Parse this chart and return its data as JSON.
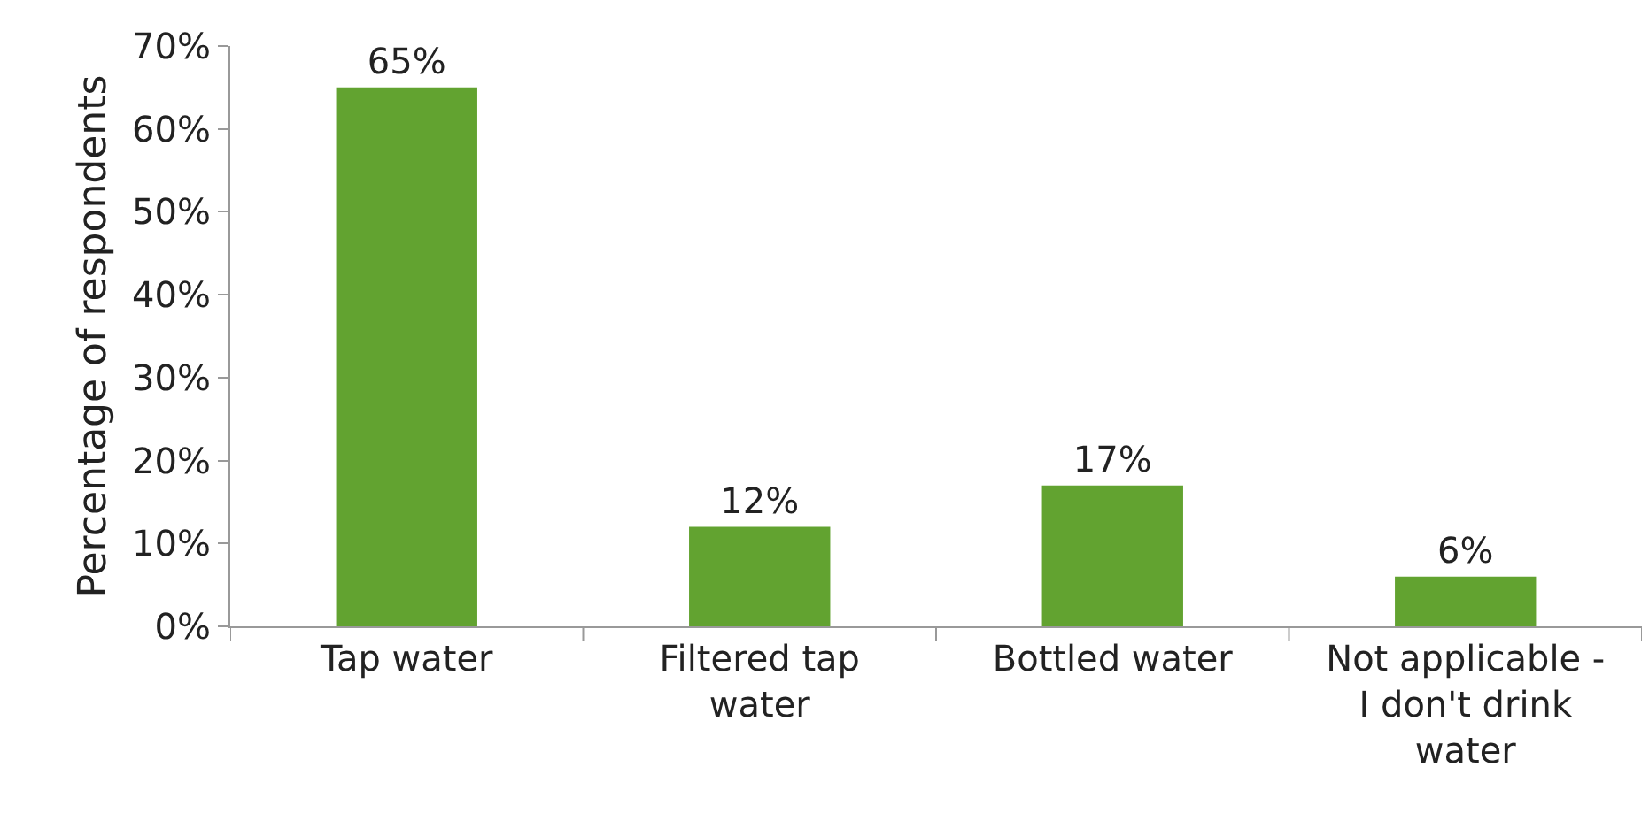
{
  "chart_data": {
    "type": "bar",
    "ylabel": "Percentage of respondents",
    "categories": [
      "Tap water",
      "Filtered tap water",
      "Bottled water",
      "Not applicable - I don't drink water"
    ],
    "values": [
      65,
      12,
      17,
      6
    ],
    "value_labels": [
      "65%",
      "12%",
      "17%",
      "6%"
    ],
    "color": "#62a330",
    "ylim": [
      0,
      70
    ],
    "yticks": [
      {
        "value": 0,
        "label": "0%"
      },
      {
        "value": 10,
        "label": "10%"
      },
      {
        "value": 20,
        "label": "20%"
      },
      {
        "value": 30,
        "label": "30%"
      },
      {
        "value": 40,
        "label": "40%"
      },
      {
        "value": 50,
        "label": "50%"
      },
      {
        "value": 60,
        "label": "60%"
      },
      {
        "value": 70,
        "label": "70%"
      }
    ],
    "grid": false
  }
}
